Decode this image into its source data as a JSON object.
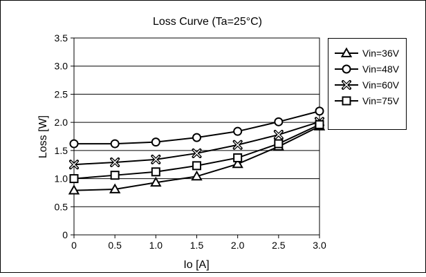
{
  "chart_data": {
    "type": "line",
    "title": "Loss Curve (Ta=25°C)",
    "xlabel": "Io [A]",
    "ylabel": "Loss [W]",
    "x": [
      0,
      0.5,
      1.0,
      1.5,
      2.0,
      2.5,
      3.0
    ],
    "x_tick_labels": [
      "0",
      "0.5",
      "1.0",
      "1.5",
      "2.0",
      "2.5",
      "3.0"
    ],
    "xlim": [
      0,
      3.0
    ],
    "y_tick_values": [
      0,
      0.5,
      1.0,
      1.5,
      2.0,
      2.5,
      3.0,
      3.5
    ],
    "y_tick_labels": [
      "0",
      "0.5",
      "1.0",
      "1.5",
      "2.0",
      "2.5",
      "3.0",
      "3.5"
    ],
    "ylim": [
      0,
      3.5
    ],
    "grid": "horizontal",
    "legend_position": "right",
    "series": [
      {
        "name": "Vin=36V",
        "marker": "triangle",
        "values": [
          0.79,
          0.81,
          0.93,
          1.04,
          1.26,
          1.57,
          1.93
        ]
      },
      {
        "name": "Vin=48V",
        "marker": "circle",
        "values": [
          1.62,
          1.62,
          1.65,
          1.73,
          1.84,
          2.01,
          2.2
        ]
      },
      {
        "name": "Vin=60V",
        "marker": "cross",
        "values": [
          1.25,
          1.29,
          1.34,
          1.45,
          1.6,
          1.78,
          2.01
        ]
      },
      {
        "name": "Vin=75V",
        "marker": "square",
        "values": [
          1.0,
          1.06,
          1.12,
          1.23,
          1.37,
          1.62,
          1.96
        ]
      }
    ]
  }
}
